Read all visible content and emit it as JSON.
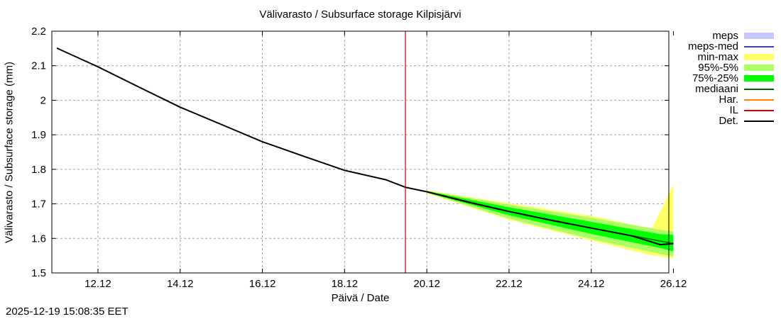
{
  "chart_data": {
    "type": "line",
    "title": "Välivarasto / Subsurface storage  Kilpisjärvi",
    "xlabel": "Päivä / Date",
    "ylabel": "Välivarasto / Subsurface storage (mm)",
    "ylim": [
      1.5,
      2.2
    ],
    "yticks": [
      "1.5",
      "1.6",
      "1.7",
      "1.8",
      "1.9",
      "2",
      "2.1",
      "2.2"
    ],
    "xticks": [
      "12.12",
      "14.12",
      "16.12",
      "18.12",
      "20.12",
      "22.12",
      "24.12",
      "26.12"
    ],
    "grid": true,
    "legend_position": "right",
    "forecast_start_marker": "19.12",
    "series": [
      {
        "name": "Det.",
        "color": "#000000",
        "x": [
          "11.12",
          "12.12",
          "13.12",
          "14.12",
          "15.12",
          "16.12",
          "17.12",
          "18.12",
          "19.12",
          "19.6",
          "20.12",
          "21.12",
          "22.12",
          "23.12",
          "24.12",
          "25.12",
          "25.8",
          "26.12"
        ],
        "values": [
          2.151,
          2.097,
          2.038,
          1.98,
          1.93,
          1.88,
          1.838,
          1.797,
          1.77,
          1.748,
          1.735,
          1.705,
          1.678,
          1.653,
          1.63,
          1.607,
          1.582,
          1.585
        ]
      },
      {
        "name": "mediaani",
        "color": "#006400",
        "x": [
          "20.12",
          "22.12",
          "24.12",
          "26.12"
        ],
        "values": [
          1.735,
          1.678,
          1.63,
          1.585
        ]
      },
      {
        "name": "75%-25%",
        "color": "#00ff00",
        "x": [
          "20.12",
          "22.12",
          "24.12",
          "25.8",
          "26.12"
        ],
        "upper": [
          1.737,
          1.69,
          1.648,
          1.612,
          1.61
        ],
        "lower": [
          1.733,
          1.667,
          1.613,
          1.572,
          1.562
        ]
      },
      {
        "name": "95%-5%",
        "color": "#aaff66",
        "x": [
          "20.12",
          "22.12",
          "24.12",
          "25.8",
          "26.12"
        ],
        "upper": [
          1.738,
          1.698,
          1.66,
          1.625,
          1.62
        ],
        "lower": [
          1.732,
          1.657,
          1.598,
          1.555,
          1.548
        ]
      },
      {
        "name": "min-max",
        "color": "#ffff66",
        "x": [
          "20.12",
          "22.12",
          "24.12",
          "25.6",
          "26.12"
        ],
        "upper": [
          1.739,
          1.702,
          1.665,
          1.628,
          1.755
        ],
        "lower": [
          1.731,
          1.654,
          1.594,
          1.551,
          1.542
        ]
      },
      {
        "name": "meps",
        "color": "#c8c8ff",
        "values": []
      },
      {
        "name": "meps-med",
        "color": "#4040cc",
        "values": []
      },
      {
        "name": "Har.",
        "color": "#ff8000",
        "values": []
      },
      {
        "name": "IL",
        "color": "#dd0000",
        "values": []
      }
    ]
  },
  "legend": {
    "items": [
      {
        "label": "meps",
        "color": "#c8c8ff",
        "kind": "band"
      },
      {
        "label": "meps-med",
        "color": "#4040cc",
        "kind": "line"
      },
      {
        "label": "min-max",
        "color": "#ffff66",
        "kind": "band"
      },
      {
        "label": "95%-5%",
        "color": "#aaff66",
        "kind": "band"
      },
      {
        "label": "75%-25%",
        "color": "#00ff00",
        "kind": "band"
      },
      {
        "label": "mediaani",
        "color": "#006400",
        "kind": "line"
      },
      {
        "label": "Har.",
        "color": "#ff8000",
        "kind": "line"
      },
      {
        "label": "IL",
        "color": "#dd0000",
        "kind": "line"
      },
      {
        "label": "Det.",
        "color": "#000000",
        "kind": "line"
      }
    ]
  },
  "footer": {
    "timestamp": "2025-12-19 15:08:35 EET"
  }
}
